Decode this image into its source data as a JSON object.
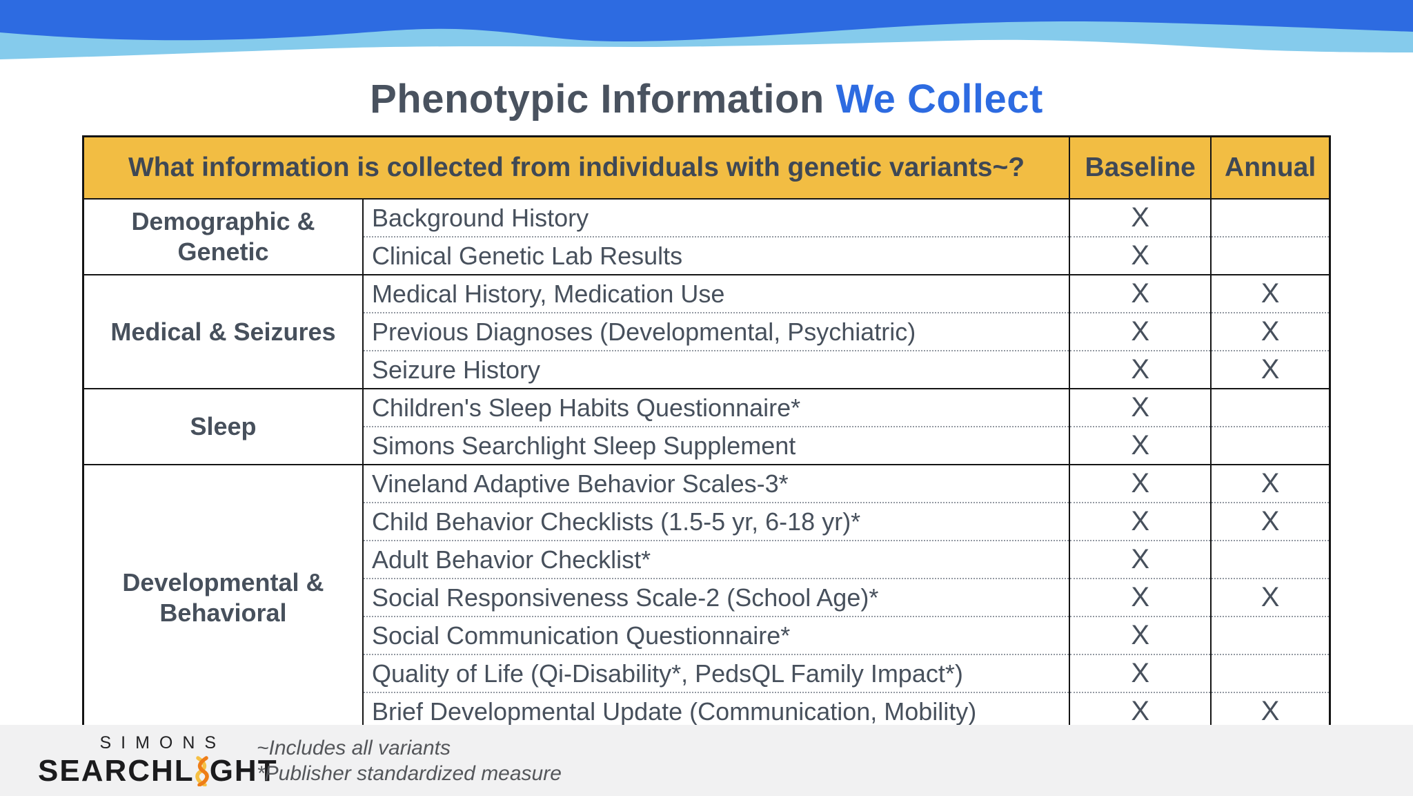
{
  "title": {
    "main": "Phenotypic Information",
    "highlight": "We Collect"
  },
  "colors": {
    "wave_dark_blue": "#2d6be1",
    "wave_light_blue": "#85cbec",
    "accent_blue": "#2d6be1",
    "header_yellow": "#f2bd43",
    "text_slate": "#47505c",
    "border_black": "#141414",
    "footer_gray": "#f1f1f2",
    "logo_orange": "#ee7d18",
    "logo_yellow": "#f6c044"
  },
  "table": {
    "header": {
      "question": "What information is collected from individuals with genetic variants~?",
      "baseline": "Baseline",
      "annual": "Annual"
    },
    "mark": "X",
    "sections": [
      {
        "category": "Demographic & Genetic",
        "rows": [
          {
            "measure": "Background History",
            "baseline": true,
            "annual": false
          },
          {
            "measure": "Clinical Genetic Lab Results",
            "baseline": true,
            "annual": false
          }
        ]
      },
      {
        "category": "Medical & Seizures",
        "rows": [
          {
            "measure": "Medical History, Medication Use",
            "baseline": true,
            "annual": true
          },
          {
            "measure": "Previous Diagnoses (Developmental, Psychiatric)",
            "baseline": true,
            "annual": true
          },
          {
            "measure": "Seizure History",
            "baseline": true,
            "annual": true
          }
        ]
      },
      {
        "category": "Sleep",
        "rows": [
          {
            "measure": "Children's Sleep Habits Questionnaire*",
            "baseline": true,
            "annual": false
          },
          {
            "measure": "Simons Searchlight Sleep Supplement",
            "baseline": true,
            "annual": false
          }
        ]
      },
      {
        "category": "Developmental & Behavioral",
        "rows": [
          {
            "measure": "Vineland Adaptive Behavior Scales-3*",
            "baseline": true,
            "annual": true
          },
          {
            "measure": "Child Behavior Checklists (1.5-5 yr, 6-18 yr)*",
            "baseline": true,
            "annual": true
          },
          {
            "measure": "Adult Behavior Checklist*",
            "baseline": true,
            "annual": false
          },
          {
            "measure": "Social Responsiveness Scale-2 (School Age)*",
            "baseline": true,
            "annual": true
          },
          {
            "measure": "Social Communication Questionnaire*",
            "baseline": true,
            "annual": false
          },
          {
            "measure": "Quality of Life (Qi-Disability*, PedsQL Family Impact*)",
            "baseline": true,
            "annual": false
          },
          {
            "measure": "Brief Developmental Update (Communication, Mobility)",
            "baseline": true,
            "annual": true
          }
        ]
      }
    ]
  },
  "footer": {
    "logo": {
      "line1": "SIMONS",
      "line2_pre": "SEARCHL",
      "line2_post": "GHT",
      "icon": "dna-helix-icon"
    },
    "notes": [
      "~Includes all variants",
      "*Publisher standardized measure"
    ]
  }
}
